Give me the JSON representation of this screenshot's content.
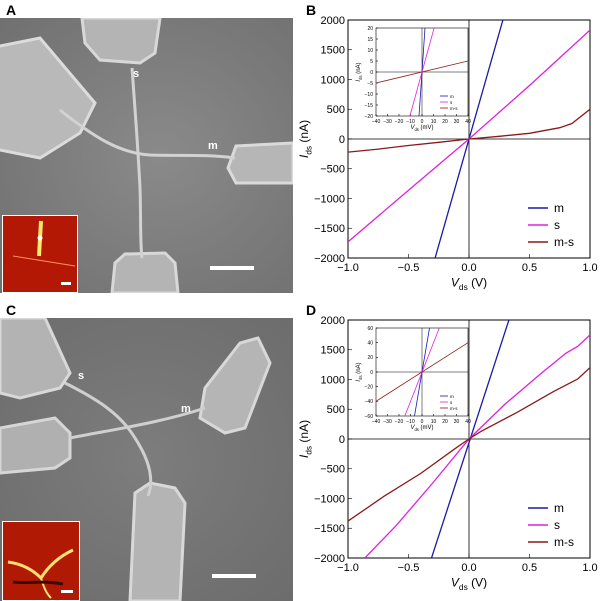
{
  "panels": {
    "a": {
      "letter": "A",
      "labels": {
        "s": "s",
        "m": "m"
      }
    },
    "b": {
      "letter": "B"
    },
    "c": {
      "letter": "C",
      "labels": {
        "s": "s",
        "m": "m"
      }
    },
    "d": {
      "letter": "D"
    }
  },
  "chart_data": [
    {
      "type": "line",
      "panel": "B",
      "xlabel": "V",
      "xlabel_sub": "ds",
      "xlabel_unit": " (V)",
      "ylabel": "I",
      "ylabel_sub": "ds",
      "ylabel_unit": " (nA)",
      "xlim": [
        -1.0,
        1.0
      ],
      "ylim": [
        -2000,
        2000
      ],
      "xticks": [
        "-1.0",
        "-0.5",
        "0.0",
        "0.5",
        "1.0"
      ],
      "yticks": [
        "-2000",
        "-1500",
        "-1000",
        "-500",
        "0",
        "500",
        "1000",
        "1500",
        "2000"
      ],
      "legend": "bottom-right",
      "series": [
        {
          "name": "m",
          "color": "#1a1aa8",
          "x": [
            -0.28,
            0.28
          ],
          "y": [
            -2000,
            2000
          ]
        },
        {
          "name": "s",
          "color": "#e020e0",
          "x": [
            -1.0,
            -0.5,
            0.0,
            0.5,
            1.0
          ],
          "y": [
            -1730,
            -860,
            0,
            900,
            1830
          ]
        },
        {
          "name": "m-s",
          "color": "#8b1a1a",
          "x": [
            -1.0,
            -0.75,
            -0.5,
            -0.25,
            0.0,
            0.25,
            0.5,
            0.75,
            0.85,
            1.0
          ],
          "y": [
            -220,
            -170,
            -110,
            -55,
            0,
            45,
            95,
            190,
            260,
            500
          ]
        }
      ],
      "inset": {
        "xlabel": "V",
        "xlabel_sub": "ds",
        "xlabel_unit": " (mV)",
        "ylabel": "I",
        "ylabel_sub": "ds",
        "ylabel_unit": " (nA)",
        "xlim": [
          -40,
          40
        ],
        "ylim": [
          -20,
          20
        ],
        "xticks": [
          "-40",
          "-30",
          "-20",
          "-10",
          "0",
          "10",
          "20",
          "30",
          "40"
        ],
        "yticks": [
          "-20",
          "-15",
          "-10",
          "-5",
          "0",
          "5",
          "10",
          "15",
          "20"
        ],
        "series": [
          {
            "name": "m",
            "color": "#1a1aa8",
            "x": [
              -2.6,
              2.6
            ],
            "y": [
              -20,
              20
            ]
          },
          {
            "name": "s",
            "color": "#e020e0",
            "x": [
              -10.5,
              10.5
            ],
            "y": [
              -20,
              20
            ]
          },
          {
            "name": "m-s",
            "color": "#8b1a1a",
            "x": [
              -40,
              40
            ],
            "y": [
              -5,
              5
            ]
          }
        ]
      }
    },
    {
      "type": "line",
      "panel": "D",
      "xlabel": "V",
      "xlabel_sub": "ds",
      "xlabel_unit": " (V)",
      "ylabel": "I",
      "ylabel_sub": "ds",
      "ylabel_unit": " (nA)",
      "xlim": [
        -1.0,
        1.0
      ],
      "ylim": [
        -2000,
        2000
      ],
      "xticks": [
        "-1.0",
        "-0.5",
        "0.0",
        "0.5",
        "1.0"
      ],
      "yticks": [
        "-2000",
        "-1500",
        "-1000",
        "-500",
        "0",
        "500",
        "1000",
        "1500",
        "2000"
      ],
      "legend": "bottom-right",
      "series": [
        {
          "name": "m",
          "color": "#1a1aa8",
          "x": [
            -0.31,
            0.33
          ],
          "y": [
            -2000,
            2000
          ]
        },
        {
          "name": "s",
          "color": "#e020e0",
          "x": [
            -0.86,
            -0.6,
            -0.3,
            0.0,
            0.3,
            0.6,
            0.8,
            0.9,
            1.0
          ],
          "y": [
            -2000,
            -1450,
            -740,
            0,
            590,
            1110,
            1440,
            1560,
            1750
          ]
        },
        {
          "name": "m-s",
          "color": "#8b1a1a",
          "x": [
            -1.0,
            -0.7,
            -0.4,
            -0.1,
            0.0,
            0.1,
            0.4,
            0.7,
            0.9,
            1.0
          ],
          "y": [
            -1380,
            -960,
            -580,
            -140,
            0,
            130,
            450,
            800,
            1010,
            1200
          ]
        }
      ],
      "inset": {
        "xlabel": "V",
        "xlabel_sub": "ds",
        "xlabel_unit": " (mV)",
        "ylabel": "I",
        "ylabel_sub": "ds",
        "ylabel_unit": " (nA)",
        "xlim": [
          -40,
          40
        ],
        "ylim": [
          -60,
          60
        ],
        "xticks": [
          "-40",
          "-30",
          "-20",
          "-10",
          "0",
          "10",
          "20",
          "30",
          "40"
        ],
        "yticks": [
          "-60",
          "-40",
          "-20",
          "0",
          "20",
          "40",
          "60"
        ],
        "series": [
          {
            "name": "m",
            "color": "#1a1aa8",
            "x": [
              -6.5,
              6.5
            ],
            "y": [
              -60,
              60
            ]
          },
          {
            "name": "s",
            "color": "#e020e0",
            "x": [
              -15,
              15
            ],
            "y": [
              -60,
              60
            ]
          },
          {
            "name": "m-s",
            "color": "#8b1a1a",
            "x": [
              -40,
              40
            ],
            "y": [
              -40,
              40
            ]
          }
        ]
      }
    }
  ]
}
